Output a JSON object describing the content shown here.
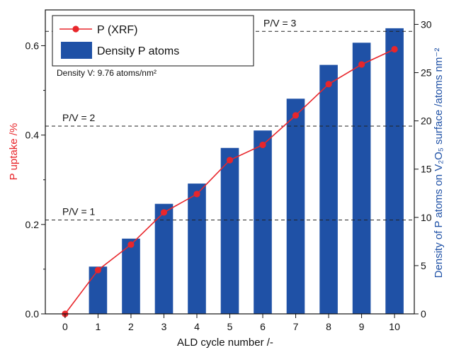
{
  "chart_data": {
    "type": "bar+line",
    "x": [
      0,
      1,
      2,
      3,
      4,
      5,
      6,
      7,
      8,
      9,
      10
    ],
    "xlabel": "ALD cycle number /-",
    "xlim": [
      -0.6,
      10.6
    ],
    "ylabel_left": "P uptake /%",
    "ylabel_right": "Density of P atoms on V₂O₅ surface /atoms nm⁻²",
    "ylim_left": [
      0,
      0.68
    ],
    "ylim_right": [
      0,
      31.5
    ],
    "yticks_left": [
      0.0,
      0.2,
      0.4,
      0.6
    ],
    "yticks_left_labels": [
      "0.0",
      "0.2",
      "0.4",
      "0.6"
    ],
    "yticks_right": [
      0,
      5,
      10,
      15,
      20,
      25,
      30
    ],
    "series": [
      {
        "name": "P (XRF)",
        "type": "line",
        "axis": "left",
        "color": "#e8262b",
        "x": [
          0,
          1,
          2,
          3,
          4,
          5,
          6,
          7,
          8,
          9,
          10
        ],
        "values": [
          0.0,
          0.098,
          0.155,
          0.227,
          0.268,
          0.344,
          0.378,
          0.444,
          0.514,
          0.558,
          0.592
        ]
      },
      {
        "name": "Density P atoms",
        "type": "bar",
        "axis": "right",
        "color": "#1f51a6",
        "x": [
          1,
          2,
          3,
          4,
          5,
          6,
          7,
          8,
          9,
          10
        ],
        "values": [
          4.9,
          7.8,
          11.4,
          13.5,
          17.2,
          19.0,
          22.3,
          25.8,
          28.1,
          29.6
        ]
      }
    ],
    "reference_lines": [
      {
        "label": "P/V = 1",
        "y": 0.21
      },
      {
        "label": "P/V = 2",
        "y": 0.42
      },
      {
        "label": "P/V = 3",
        "y": 0.632
      }
    ],
    "note": "Density V: 9.76 atoms/nm²",
    "legend_position": "top-left",
    "grid": false,
    "colors": {
      "line": "#e8262b",
      "bar": "#1f51a6",
      "right_axis_label": "#1f51a6",
      "left_axis_label": "#e8262b"
    }
  }
}
